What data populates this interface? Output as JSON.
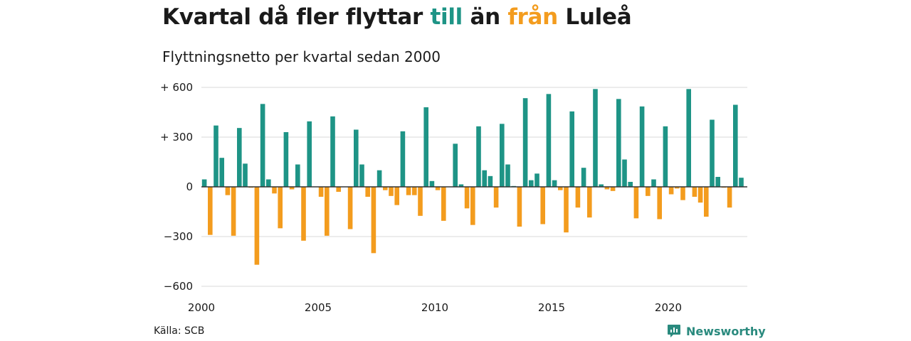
{
  "header": {
    "title_parts": [
      "Kvartal då fler flyttar ",
      "till",
      " än ",
      "från",
      " Luleå"
    ],
    "subtitle": "Flyttningsnetto per kvartal sedan 2000"
  },
  "footer": {
    "source": "Källa: SCB",
    "brand": "Newsworthy"
  },
  "colors": {
    "positive": "#1e9486",
    "negative": "#f39c1e",
    "title_till": "#1e9486",
    "title_fran": "#f39c1e",
    "brand": "#2a8a7e",
    "grid": "#d9d9d9"
  },
  "icons": [
    "newsworthy-logo-icon"
  ],
  "chart_data": {
    "type": "bar",
    "title": "Kvartal då fler flyttar till än från Luleå",
    "subtitle": "Flyttningsnetto per kvartal sedan 2000",
    "xlabel": "",
    "ylabel": "",
    "x_tick_labels": [
      "2000",
      "2005",
      "2010",
      "2015",
      "2020"
    ],
    "y_tick_labels": [
      "+ 600",
      "+ 300",
      "0",
      "−300",
      "−600"
    ],
    "y_ticks": [
      600,
      300,
      0,
      -300,
      -600
    ],
    "ylim": [
      -650,
      650
    ],
    "xlim_years": [
      2000,
      2023.5
    ],
    "grid": true,
    "legend": "none",
    "first_period": "2000 Q1",
    "period_unit": "quarter",
    "values": [
      45,
      -290,
      370,
      175,
      -50,
      -295,
      355,
      140,
      -5,
      -470,
      500,
      45,
      -40,
      -250,
      330,
      -15,
      135,
      -325,
      395,
      0,
      -60,
      -295,
      425,
      -30,
      0,
      -255,
      345,
      135,
      -60,
      -400,
      100,
      -20,
      -55,
      -110,
      335,
      -50,
      -50,
      -175,
      480,
      35,
      -20,
      -205,
      0,
      260,
      15,
      -130,
      -230,
      365,
      100,
      65,
      -125,
      380,
      135,
      5,
      -240,
      535,
      40,
      80,
      -225,
      560,
      40,
      -20,
      -275,
      455,
      -125,
      115,
      -185,
      590,
      15,
      -15,
      -25,
      530,
      165,
      30,
      -190,
      485,
      -55,
      45,
      -195,
      365,
      -45,
      -10,
      -80,
      590,
      -60,
      -95,
      -180,
      405,
      60,
      -5,
      -125,
      495,
      55,
      0
    ]
  }
}
